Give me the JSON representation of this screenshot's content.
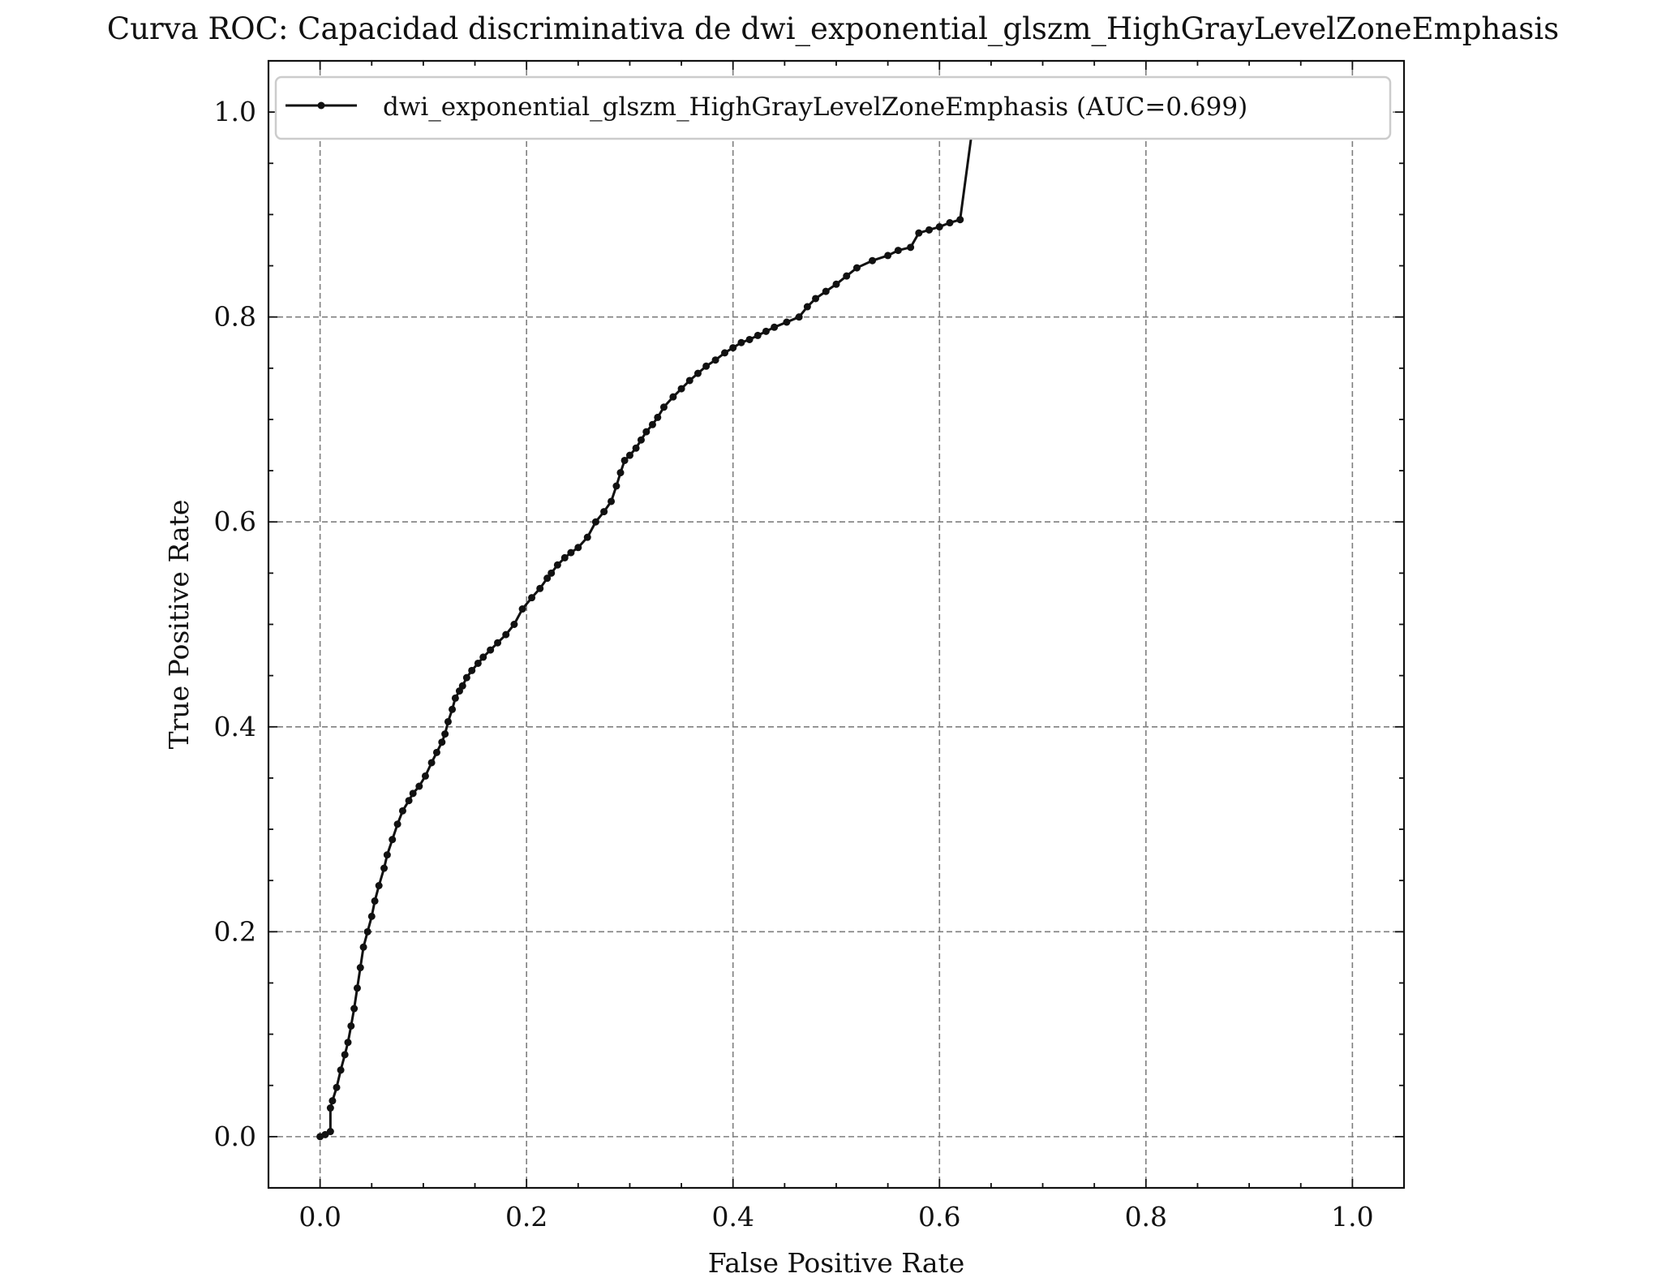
{
  "chart_data": {
    "type": "line",
    "title": "Curva ROC: Capacidad discriminativa de dwi_exponential_glszm_HighGrayLevelZoneEmphasis",
    "xlabel": "False Positive Rate",
    "ylabel": "True Positive Rate",
    "xlim": [
      -0.05,
      1.05
    ],
    "ylim": [
      -0.05,
      1.05
    ],
    "xticks": [
      0.0,
      0.2,
      0.4,
      0.6,
      0.8,
      1.0
    ],
    "xtick_labels": [
      "0.0",
      "0.2",
      "0.4",
      "0.6",
      "0.8",
      "1.0"
    ],
    "yticks": [
      0.0,
      0.2,
      0.4,
      0.6,
      0.8,
      1.0
    ],
    "ytick_labels": [
      "0.0",
      "0.2",
      "0.4",
      "0.6",
      "0.8",
      "1.0"
    ],
    "grid": true,
    "legend_position": "top-left",
    "series": [
      {
        "name": "dwi_exponential_glszm_HighGrayLevelZoneEmphasis (AUC=0.699)",
        "color": "#111111",
        "marker": "dot",
        "x": [
          0.0,
          0.005,
          0.01,
          0.01,
          0.012,
          0.016,
          0.02,
          0.024,
          0.027,
          0.03,
          0.033,
          0.036,
          0.039,
          0.042,
          0.046,
          0.05,
          0.053,
          0.057,
          0.062,
          0.065,
          0.07,
          0.075,
          0.08,
          0.086,
          0.09,
          0.096,
          0.102,
          0.108,
          0.113,
          0.118,
          0.121,
          0.124,
          0.128,
          0.131,
          0.135,
          0.138,
          0.142,
          0.147,
          0.153,
          0.158,
          0.165,
          0.172,
          0.18,
          0.188,
          0.196,
          0.205,
          0.213,
          0.22,
          0.224,
          0.23,
          0.237,
          0.243,
          0.25,
          0.259,
          0.267,
          0.275,
          0.282,
          0.287,
          0.291,
          0.295,
          0.3,
          0.306,
          0.311,
          0.316,
          0.322,
          0.327,
          0.333,
          0.342,
          0.35,
          0.358,
          0.366,
          0.374,
          0.383,
          0.392,
          0.4,
          0.408,
          0.416,
          0.424,
          0.432,
          0.44,
          0.452,
          0.464,
          0.472,
          0.48,
          0.49,
          0.5,
          0.51,
          0.52,
          0.535,
          0.55,
          0.56,
          0.572,
          0.58,
          0.59,
          0.6,
          0.61,
          0.62,
          0.632,
          0.645,
          0.66,
          0.672,
          0.685,
          0.698,
          0.71,
          0.716,
          0.72,
          0.73,
          0.74,
          0.75,
          0.76,
          1.0
        ],
        "y": [
          0.0,
          0.002,
          0.005,
          0.028,
          0.035,
          0.048,
          0.065,
          0.08,
          0.092,
          0.108,
          0.125,
          0.145,
          0.165,
          0.185,
          0.2,
          0.215,
          0.23,
          0.245,
          0.262,
          0.275,
          0.29,
          0.305,
          0.318,
          0.328,
          0.335,
          0.342,
          0.352,
          0.365,
          0.375,
          0.385,
          0.393,
          0.405,
          0.417,
          0.428,
          0.435,
          0.44,
          0.448,
          0.455,
          0.462,
          0.468,
          0.475,
          0.482,
          0.49,
          0.5,
          0.515,
          0.526,
          0.535,
          0.545,
          0.55,
          0.558,
          0.565,
          0.57,
          0.575,
          0.585,
          0.6,
          0.61,
          0.62,
          0.635,
          0.648,
          0.66,
          0.665,
          0.672,
          0.68,
          0.688,
          0.695,
          0.702,
          0.712,
          0.722,
          0.73,
          0.738,
          0.745,
          0.752,
          0.758,
          0.765,
          0.77,
          0.775,
          0.778,
          0.782,
          0.786,
          0.79,
          0.795,
          0.8,
          0.81,
          0.818,
          0.825,
          0.832,
          0.84,
          0.848,
          0.855,
          0.86,
          0.865,
          0.868,
          0.882,
          0.885,
          0.888,
          0.892,
          0.895,
          0.985,
          0.985,
          0.985,
          0.985,
          0.985,
          0.985,
          0.985,
          0.985,
          0.985,
          0.985,
          0.985,
          0.985,
          0.985,
          1.0
        ]
      }
    ]
  }
}
